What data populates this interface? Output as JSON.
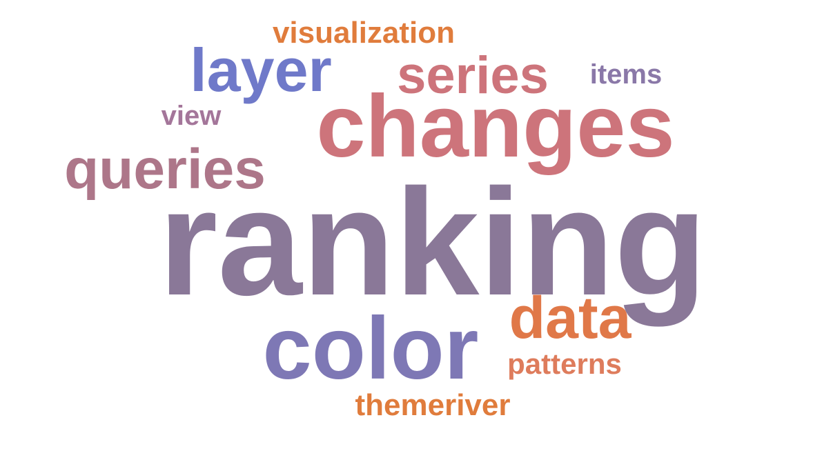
{
  "words": {
    "ranking": {
      "text": "ranking",
      "color": "#8a7898"
    },
    "changes": {
      "text": "changes",
      "color": "#cd747b"
    },
    "color": {
      "text": "color",
      "color": "#7e78b5"
    },
    "series": {
      "text": "series",
      "color": "#cd747b"
    },
    "layer": {
      "text": "layer",
      "color": "#6f79c9"
    },
    "queries": {
      "text": "queries",
      "color": "#ad7689"
    },
    "data": {
      "text": "data",
      "color": "#e07848"
    },
    "visualization": {
      "text": "visualization",
      "color": "#e07c3c"
    },
    "items": {
      "text": "items",
      "color": "#8a78a8"
    },
    "view": {
      "text": "view",
      "color": "#a4769a"
    },
    "patterns": {
      "text": "patterns",
      "color": "#de7c5c"
    },
    "themeriver": {
      "text": "themeriver",
      "color": "#e07c3c"
    }
  }
}
